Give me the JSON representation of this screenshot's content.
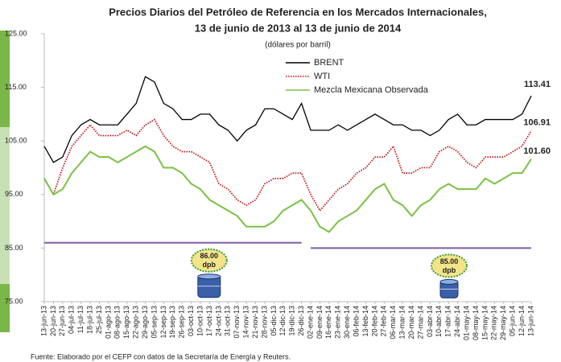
{
  "chart_data": {
    "type": "line",
    "title": "Precios Diarios del Petróleo de Referencia en los Mercados Internacionales,",
    "subtitle": "13 de junio de 2013 al 13 de junio de 2014",
    "y_label": "(dólares por barril)",
    "source": "Fuente: Elaborado por el CEFP con datos de la Secretaría de Energía y Reuters.",
    "categories": [
      "13-jun-13",
      "20-jun-13",
      "27-jun-13",
      "04-jul-13",
      "11-jul-13",
      "18-jul-13",
      "25-jul-13",
      "01-ago-13",
      "08-ago-13",
      "15-ago-13",
      "22-ago-13",
      "29-ago-13",
      "05-sep-13",
      "12-sep-13",
      "19-sep-13",
      "26-sep-13",
      "03-oct-13",
      "10-oct-13",
      "17-oct-13",
      "24-oct-13",
      "31-oct-13",
      "07-nov-13",
      "14-nov-13",
      "21-nov-13",
      "28-nov-13",
      "05-dic-13",
      "12-dic-13",
      "19-dic-13",
      "26-dic-13",
      "02-ene-14",
      "09-ene-14",
      "16-ene-14",
      "23-ene-14",
      "30-ene-14",
      "06-feb-14",
      "13-feb-14",
      "20-feb-14",
      "27-feb-14",
      "06-mar-14",
      "13-mar-14",
      "20-mar-14",
      "27-mar-14",
      "03-abr-14",
      "10-abr-14",
      "17-abr-14",
      "24-abr-14",
      "01-may-14",
      "08-may-14",
      "15-may-14",
      "22-may-14",
      "29-may-14",
      "05-jun-14",
      "12-jun-14",
      "13-jun-14"
    ],
    "series": [
      {
        "name": "BRENT",
        "color": "#000000",
        "dash": "solid",
        "values": [
          104,
          101,
          102,
          106,
          108,
          109,
          108,
          108,
          108,
          110,
          112,
          117,
          116,
          112,
          111,
          109,
          109,
          110,
          110,
          108,
          107,
          105,
          107,
          108,
          111,
          111,
          110,
          109,
          112,
          107,
          107,
          107,
          108,
          107,
          108,
          109,
          110,
          109,
          108,
          108,
          107,
          107,
          106,
          107,
          109,
          110,
          108,
          108,
          109,
          109,
          109,
          109,
          110,
          113.41
        ],
        "value_labels": [
          null,
          null,
          null,
          null,
          null,
          null,
          null,
          null,
          null,
          null,
          null,
          null,
          null,
          null,
          null,
          null,
          null,
          null,
          null,
          null,
          null,
          null,
          null,
          null,
          null,
          null,
          null,
          null,
          null,
          null,
          null,
          null,
          null,
          null,
          null,
          null,
          null,
          null,
          null,
          null,
          null,
          null,
          null,
          null,
          null,
          null,
          null,
          null,
          null,
          null,
          null,
          null,
          null,
          "113.41"
        ]
      },
      {
        "name": "WTI",
        "color": "#c00000",
        "dash": "dotted",
        "values": [
          98,
          95,
          100,
          104,
          106,
          108,
          106,
          106,
          106,
          107,
          106,
          108,
          109,
          106,
          104,
          103,
          103,
          102,
          101,
          97,
          96,
          94,
          93,
          94,
          97,
          98,
          98,
          99,
          99,
          95,
          92,
          94,
          96,
          97,
          99,
          100,
          102,
          102,
          104,
          99,
          99,
          100,
          100,
          103,
          104,
          103,
          101,
          100,
          102,
          102,
          102,
          103,
          104,
          106.91
        ],
        "value_labels": [
          null,
          null,
          null,
          null,
          null,
          null,
          null,
          null,
          null,
          null,
          null,
          null,
          null,
          null,
          null,
          null,
          null,
          null,
          null,
          null,
          null,
          null,
          null,
          null,
          null,
          null,
          null,
          null,
          null,
          null,
          null,
          null,
          null,
          null,
          null,
          null,
          null,
          null,
          null,
          null,
          null,
          null,
          null,
          null,
          null,
          null,
          null,
          null,
          null,
          null,
          null,
          null,
          null,
          "106.91"
        ]
      },
      {
        "name": "Mezcla Mexicana Observada",
        "color": "#7ac143",
        "dash": "solid",
        "values": [
          98,
          95,
          96,
          99,
          101,
          103,
          102,
          102,
          101,
          102,
          103,
          104,
          103,
          100,
          100,
          99,
          97,
          96,
          94,
          93,
          92,
          91,
          89,
          89,
          89,
          90,
          92,
          93,
          94,
          92,
          89,
          88,
          90,
          91,
          92,
          94,
          96,
          97,
          94,
          93,
          91,
          93,
          94,
          96,
          97,
          96,
          96,
          96,
          98,
          97,
          98,
          99,
          99,
          101.6
        ],
        "value_labels": [
          null,
          null,
          null,
          null,
          null,
          null,
          null,
          null,
          null,
          null,
          null,
          null,
          null,
          null,
          null,
          null,
          null,
          null,
          null,
          null,
          null,
          null,
          null,
          null,
          null,
          null,
          null,
          null,
          null,
          null,
          null,
          null,
          null,
          null,
          null,
          null,
          null,
          null,
          null,
          null,
          null,
          null,
          null,
          null,
          null,
          null,
          null,
          null,
          null,
          null,
          null,
          null,
          null,
          "101.60"
        ]
      }
    ],
    "reference_lines": [
      {
        "value": 86,
        "label": "86.00",
        "unit": "dpb",
        "from": "13-jun-13",
        "to": "26-dic-13",
        "color": "#7b5ea7"
      },
      {
        "value": 85,
        "label": "85.00",
        "unit": "dpb",
        "from": "02-ene-14",
        "to": "13-jun-14",
        "color": "#7b5ea7"
      }
    ],
    "ylim": [
      75,
      125
    ],
    "yticks": [
      {
        "value": 75,
        "label": "75.00"
      },
      {
        "value": 85,
        "label": "85.00"
      },
      {
        "value": 95,
        "label": "95.00"
      },
      {
        "value": 105,
        "label": "105.00"
      },
      {
        "value": 115,
        "label": "115.00"
      },
      {
        "value": 125,
        "label": "125.00"
      }
    ],
    "grid": false
  }
}
